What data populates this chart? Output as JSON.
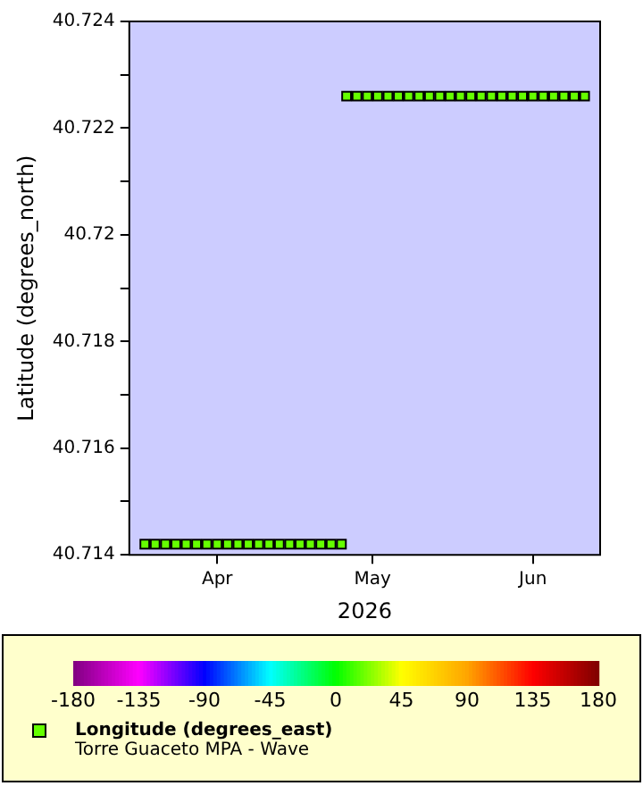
{
  "chart_data": {
    "type": "scatter",
    "xlabel": "2026",
    "ylabel": "Latitude (degrees_north)",
    "annotations": [
      "Torre Guaceto MPA - Wave"
    ],
    "series": [
      {
        "name": "Longitude (degrees_east)",
        "x": [
          "2026-03-18",
          "2026-03-20",
          "2026-03-22",
          "2026-03-24",
          "2026-03-26",
          "2026-03-28",
          "2026-03-30",
          "2026-04-01",
          "2026-04-03",
          "2026-04-05",
          "2026-04-07",
          "2026-04-09",
          "2026-04-11",
          "2026-04-13",
          "2026-04-15",
          "2026-04-17",
          "2026-04-19",
          "2026-04-21",
          "2026-04-23",
          "2026-04-25",
          "2026-04-26",
          "2026-04-28",
          "2026-04-30",
          "2026-05-02",
          "2026-05-04",
          "2026-05-06",
          "2026-05-08",
          "2026-05-10",
          "2026-05-12",
          "2026-05-14",
          "2026-05-16",
          "2026-05-18",
          "2026-05-20",
          "2026-05-22",
          "2026-05-24",
          "2026-05-26",
          "2026-05-28",
          "2026-05-30",
          "2026-06-01",
          "2026-06-03",
          "2026-06-05",
          "2026-06-07",
          "2026-06-09",
          "2026-06-11"
        ],
        "values": [
          40.7142,
          40.7142,
          40.7142,
          40.7142,
          40.7142,
          40.7142,
          40.7142,
          40.7142,
          40.7142,
          40.7142,
          40.7142,
          40.7142,
          40.7142,
          40.7142,
          40.7142,
          40.7142,
          40.7142,
          40.7142,
          40.7142,
          40.7142,
          40.7226,
          40.7226,
          40.7226,
          40.7226,
          40.7226,
          40.7226,
          40.7226,
          40.7226,
          40.7226,
          40.7226,
          40.7226,
          40.7226,
          40.7226,
          40.7226,
          40.7226,
          40.7226,
          40.7226,
          40.7226,
          40.7226,
          40.7226,
          40.7226,
          40.7226,
          40.7226,
          40.7226
        ],
        "cvalues": [
          17.8,
          17.8,
          17.8,
          17.8,
          17.8,
          17.8,
          17.8,
          17.8,
          17.8,
          17.8,
          17.8,
          17.8,
          17.8,
          17.8,
          17.8,
          17.8,
          17.8,
          17.8,
          17.8,
          17.8,
          17.8,
          17.8,
          17.8,
          17.8,
          17.8,
          17.8,
          17.8,
          17.8,
          17.8,
          17.8,
          17.8,
          17.8,
          17.8,
          17.8,
          17.8,
          17.8,
          17.8,
          17.8,
          17.8,
          17.8,
          17.8,
          17.8,
          17.8,
          17.8
        ]
      }
    ],
    "xlim": [
      "2026-03-15",
      "2026-06-14"
    ],
    "xticks": [
      {
        "value": "2026-04-01",
        "label": "Apr"
      },
      {
        "value": "2026-05-01",
        "label": "May"
      },
      {
        "value": "2026-06-01",
        "label": "Jun"
      }
    ],
    "ylim": [
      40.714,
      40.724
    ],
    "yticks": [
      40.714,
      {
        "value": 40.715,
        "label": null
      },
      40.716,
      {
        "value": 40.717,
        "label": null
      },
      40.718,
      {
        "value": 40.719,
        "label": null
      },
      40.72,
      {
        "value": 40.721,
        "label": null
      },
      40.722,
      {
        "value": 40.723,
        "label": null
      },
      40.724
    ],
    "clim": [
      -180,
      180
    ],
    "cticks": [
      -180,
      -135,
      -90,
      -45,
      0,
      45,
      90,
      135,
      180
    ],
    "marker": "square",
    "legend": "bottom"
  }
}
